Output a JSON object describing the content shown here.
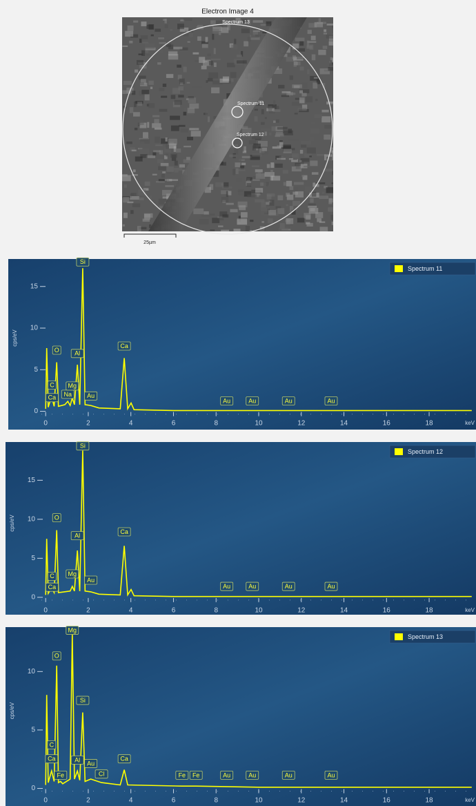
{
  "image": {
    "title": "Electron Image 4",
    "regions": [
      "Spectrum 13",
      "Spectrum 11",
      "Spectrum 12"
    ],
    "scale_bar": "25µm"
  },
  "chart_data": [
    {
      "type": "line",
      "x_label": "keV",
      "y_label": "cps/eV",
      "legend": "upper right",
      "xlim": [
        -0.2,
        20.2
      ],
      "xticks": [
        0,
        2,
        4,
        6,
        8,
        10,
        12,
        14,
        16,
        18
      ],
      "ylim": [
        -0.7,
        18.3
      ],
      "yticks": [
        0,
        5,
        10,
        15
      ],
      "series": [
        {
          "name": "Spectrum 11",
          "color": "#ffff00",
          "x": [
            0,
            0.05,
            0.12,
            0.28,
            0.4,
            0.52,
            0.6,
            0.9,
            1.04,
            1.15,
            1.25,
            1.35,
            1.49,
            1.6,
            1.74,
            1.85,
            2.12,
            2.5,
            3.5,
            3.69,
            3.85,
            4.01,
            4.15,
            6,
            10,
            14,
            20
          ],
          "values": [
            0.3,
            7.6,
            0.5,
            1.8,
            0.6,
            5.9,
            0.6,
            0.8,
            1.2,
            0.7,
            1.6,
            0.8,
            5.6,
            0.8,
            17.2,
            0.8,
            0.7,
            0.4,
            0.3,
            6.4,
            0.3,
            1.0,
            0.2,
            0.1,
            0.1,
            0.1,
            0.1
          ]
        }
      ],
      "annotations": [
        {
          "label": "Si",
          "x": 1.74,
          "y": 17.2
        },
        {
          "label": "O",
          "x": 0.52,
          "y": 6.6
        },
        {
          "label": "Al",
          "x": 1.49,
          "y": 6.2
        },
        {
          "label": "Ca",
          "x": 3.69,
          "y": 7.1
        },
        {
          "label": "C",
          "x": 0.3,
          "y": 2.4
        },
        {
          "label": "Ca",
          "x": 0.3,
          "y": 0.9
        },
        {
          "label": "Na",
          "x": 1.04,
          "y": 1.3
        },
        {
          "label": "Mg",
          "x": 1.25,
          "y": 2.3
        },
        {
          "label": "Au",
          "x": 2.12,
          "y": 1.1
        },
        {
          "label": "Au",
          "x": 8.5,
          "y": 0.5
        },
        {
          "label": "Au",
          "x": 9.7,
          "y": 0.5
        },
        {
          "label": "Au",
          "x": 11.4,
          "y": 0.5
        },
        {
          "label": "Au",
          "x": 13.4,
          "y": 0.5
        }
      ]
    },
    {
      "type": "line",
      "x_label": "keV",
      "y_label": "cps/eV",
      "legend": "upper right",
      "xlim": [
        -0.2,
        20.2
      ],
      "xticks": [
        0,
        2,
        4,
        6,
        8,
        10,
        12,
        14,
        16,
        18
      ],
      "ylim": [
        -0.9,
        19.9
      ],
      "yticks": [
        0,
        5,
        10,
        15
      ],
      "series": [
        {
          "name": "Spectrum 12",
          "color": "#ffff00",
          "x": [
            0,
            0.05,
            0.12,
            0.28,
            0.4,
            0.52,
            0.6,
            1.15,
            1.25,
            1.35,
            1.49,
            1.6,
            1.74,
            1.85,
            2.12,
            2.5,
            3.5,
            3.69,
            3.85,
            4.01,
            4.15,
            6,
            10,
            14,
            20
          ],
          "values": [
            0.3,
            7.5,
            0.5,
            1.2,
            0.6,
            8.6,
            0.6,
            0.8,
            1.4,
            0.8,
            6.0,
            0.8,
            18.8,
            0.8,
            0.7,
            0.4,
            0.3,
            6.6,
            0.3,
            1.0,
            0.2,
            0.1,
            0.1,
            0.1,
            0.1
          ]
        }
      ],
      "annotations": [
        {
          "label": "Si",
          "x": 1.74,
          "y": 18.6
        },
        {
          "label": "O",
          "x": 0.52,
          "y": 9.4
        },
        {
          "label": "Al",
          "x": 1.49,
          "y": 7.1
        },
        {
          "label": "Ca",
          "x": 3.69,
          "y": 7.6
        },
        {
          "label": "C",
          "x": 0.3,
          "y": 1.9
        },
        {
          "label": "Ca",
          "x": 0.3,
          "y": 0.5
        },
        {
          "label": "Mg",
          "x": 1.25,
          "y": 2.2
        },
        {
          "label": "Au",
          "x": 2.12,
          "y": 1.4
        },
        {
          "label": "Au",
          "x": 8.5,
          "y": 0.6
        },
        {
          "label": "Au",
          "x": 9.7,
          "y": 0.6
        },
        {
          "label": "Au",
          "x": 11.4,
          "y": 0.6
        },
        {
          "label": "Au",
          "x": 13.4,
          "y": 0.6
        }
      ]
    },
    {
      "type": "line",
      "x_label": "keV",
      "y_label": "cps/eV",
      "legend": "upper right",
      "xlim": [
        -0.2,
        20.2
      ],
      "xticks": [
        0,
        2,
        4,
        6,
        8,
        10,
        12,
        14,
        16,
        18
      ],
      "ylim": [
        -0.5,
        13.8
      ],
      "yticks": [
        0,
        5,
        10
      ],
      "series": [
        {
          "name": "Spectrum 13",
          "color": "#ffff00",
          "x": [
            0,
            0.05,
            0.12,
            0.28,
            0.4,
            0.52,
            0.6,
            0.7,
            0.8,
            1.15,
            1.25,
            1.35,
            1.49,
            1.6,
            1.74,
            1.85,
            2.12,
            2.62,
            3.5,
            3.69,
            3.85,
            6.4,
            7.06,
            10,
            14,
            20
          ],
          "values": [
            0.3,
            8.0,
            0.5,
            1.5,
            0.6,
            10.5,
            0.5,
            0.6,
            0.4,
            0.8,
            13.2,
            0.8,
            1.5,
            0.7,
            6.5,
            0.6,
            0.8,
            0.5,
            0.3,
            1.6,
            0.3,
            0.2,
            0.2,
            0.1,
            0.1,
            0.1
          ]
        }
      ],
      "annotations": [
        {
          "label": "Mg",
          "x": 1.25,
          "y": 13.0
        },
        {
          "label": "O",
          "x": 0.52,
          "y": 10.8
        },
        {
          "label": "Si",
          "x": 1.74,
          "y": 7.0
        },
        {
          "label": "C",
          "x": 0.28,
          "y": 3.2
        },
        {
          "label": "Ca",
          "x": 0.28,
          "y": 2.0
        },
        {
          "label": "Fe",
          "x": 0.7,
          "y": 0.6
        },
        {
          "label": "Al",
          "x": 1.49,
          "y": 1.9
        },
        {
          "label": "Au",
          "x": 2.12,
          "y": 1.6
        },
        {
          "label": "Cl",
          "x": 2.62,
          "y": 0.7
        },
        {
          "label": "Ca",
          "x": 3.69,
          "y": 2.0
        },
        {
          "label": "Fe",
          "x": 6.4,
          "y": 0.6
        },
        {
          "label": "Fe",
          "x": 7.06,
          "y": 0.6
        },
        {
          "label": "Au",
          "x": 8.5,
          "y": 0.6
        },
        {
          "label": "Au",
          "x": 9.7,
          "y": 0.6
        },
        {
          "label": "Au",
          "x": 11.4,
          "y": 0.6
        },
        {
          "label": "Au",
          "x": 13.4,
          "y": 0.6
        }
      ]
    }
  ]
}
